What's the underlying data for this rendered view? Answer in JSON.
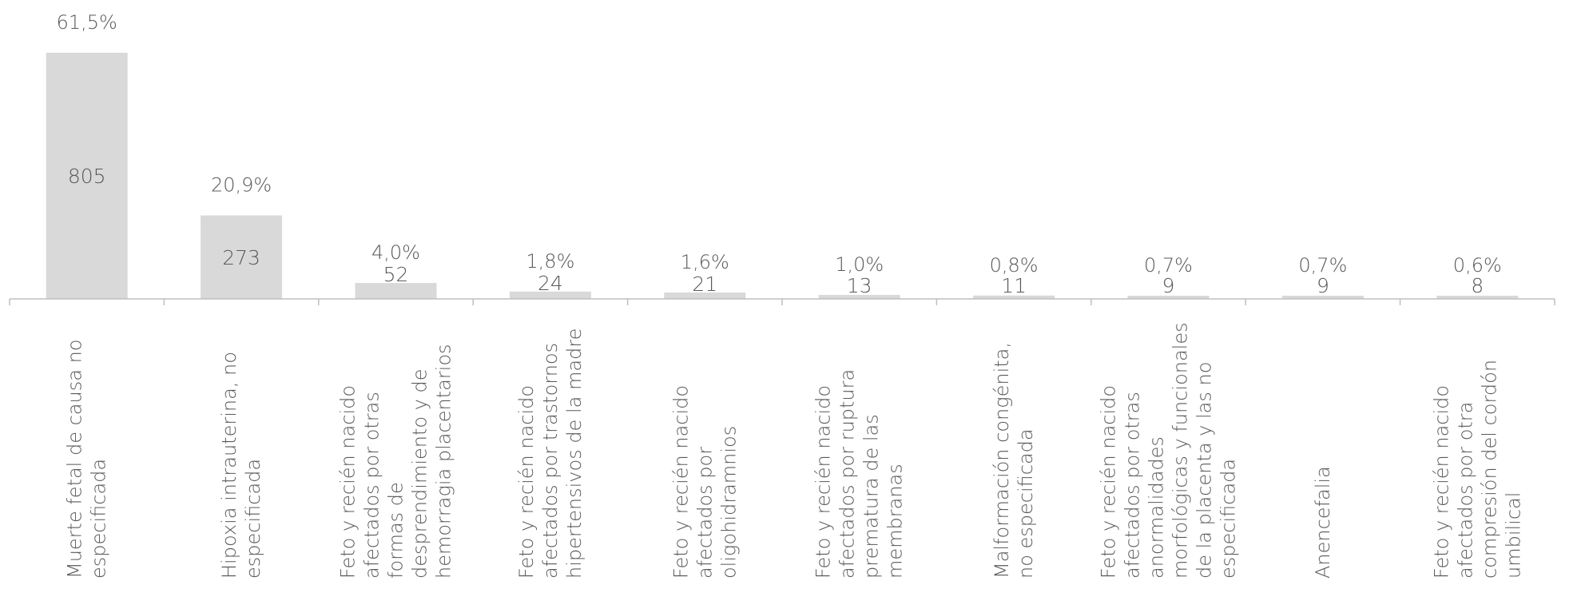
{
  "chart_data": {
    "type": "bar",
    "categories": [
      [
        "Muerte fetal de causa no",
        "especificada"
      ],
      [
        "Hipoxia intrauterina, no",
        "especificada"
      ],
      [
        "Feto y recién nacido",
        "afectados por otras",
        "formas de",
        "desprendimiento y de",
        "hemorragia placentarios"
      ],
      [
        "Feto y recién nacido",
        "afectados por trastornos",
        "hipertensivos de la madre"
      ],
      [
        "Feto y recién nacido",
        "afectados por",
        "oligohidramnios"
      ],
      [
        "Feto y recién nacido",
        "afectados por ruptura",
        "prematura de las",
        "membranas"
      ],
      [
        "Malformación congénita,",
        "no especificada"
      ],
      [
        "Feto y recién nacido",
        "afectados por otras",
        "anormalidades",
        "morfológicas y funcionales",
        "de la placenta y las no",
        "especificada"
      ],
      [
        "Anencefalia"
      ],
      [
        "Feto y recién nacido",
        "afectados por otra",
        "compresión del cordón",
        "umbilical"
      ]
    ],
    "values": [
      805,
      273,
      52,
      24,
      21,
      13,
      11,
      9,
      9,
      8
    ],
    "percent_labels": [
      "61,5%",
      "20,9%",
      "4,0%",
      "1,8%",
      "1,6%",
      "1,0%",
      "0,8%",
      "0,7%",
      "0,7%",
      "0,6%"
    ],
    "value_labels": [
      "805",
      "273",
      "52",
      "24",
      "21",
      "13",
      "11",
      "9",
      "9",
      "8"
    ],
    "title": "",
    "xlabel": "",
    "ylabel": "",
    "ylim": [
      0,
      805
    ],
    "grid": false,
    "legend": "none",
    "colors": {
      "bar": "#d9d9d9",
      "axis": "#bfbfbf",
      "text": "#595959"
    }
  }
}
